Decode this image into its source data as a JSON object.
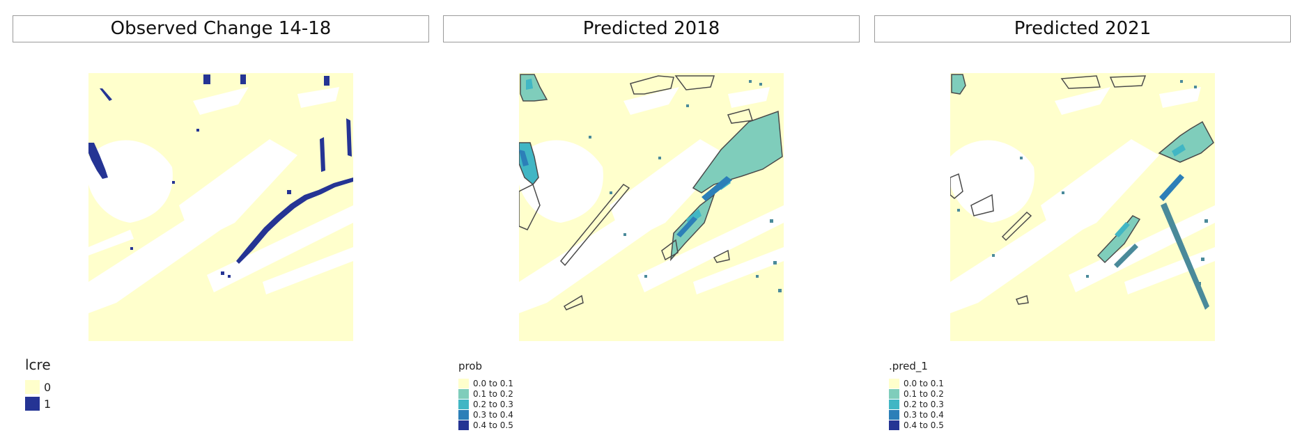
{
  "colors": {
    "zero": "#ffffcc",
    "one": "#253494",
    "bins": [
      "#ffffcc",
      "#7fcdbb",
      "#41b6c4",
      "#2c7fb8",
      "#253494"
    ],
    "outline": "#4a4a4a"
  },
  "panels": [
    {
      "title": "Observed Change 14-18",
      "legend": {
        "title": "lcre",
        "items": [
          {
            "label": "0"
          },
          {
            "label": "1"
          }
        ]
      }
    },
    {
      "title": "Predicted 2018",
      "legend": {
        "title": "prob",
        "items": [
          {
            "label": "0.0 to 0.1"
          },
          {
            "label": "0.1 to 0.2"
          },
          {
            "label": "0.2 to 0.3"
          },
          {
            "label": "0.3 to 0.4"
          },
          {
            "label": "0.4 to 0.5"
          }
        ]
      }
    },
    {
      "title": "Predicted 2021",
      "legend": {
        "title": ".pred_1",
        "items": [
          {
            "label": "0.0 to 0.1"
          },
          {
            "label": "0.1 to 0.2"
          },
          {
            "label": "0.2 to 0.3"
          },
          {
            "label": "0.3 to 0.4"
          },
          {
            "label": "0.4 to 0.5"
          }
        ]
      }
    }
  ]
}
